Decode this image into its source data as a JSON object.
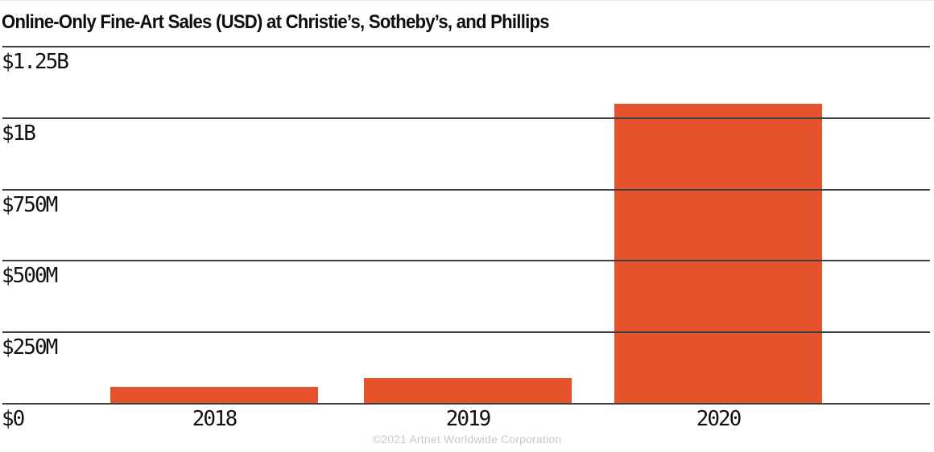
{
  "page": {
    "footer_note": "©2021 Artnet Worldwide Corporation"
  },
  "colors": {
    "background": "#FFFFFF",
    "bar": "#E6522B",
    "gridline": "#3F3F3F",
    "title_text": "#0D0D0D",
    "tick_text": "#111111",
    "footer_text": "#C9C9C9"
  },
  "chart_data": {
    "type": "bar",
    "title": "Online-Only Fine-Art Sales (USD) at Christie’s, Sotheby’s, and Phillips",
    "categories": [
      "2018",
      "2019",
      "2020"
    ],
    "values": [
      60,
      90,
      1050
    ],
    "unit": "USD millions",
    "xlabel": "",
    "ylabel": "",
    "ylim": [
      0,
      1250
    ],
    "yticks": [
      {
        "value": 1250,
        "label": "$1.25B"
      },
      {
        "value": 1000,
        "label": "$1B"
      },
      {
        "value": 750,
        "label": "$750M"
      },
      {
        "value": 500,
        "label": "$500M"
      },
      {
        "value": 250,
        "label": "$250M"
      },
      {
        "value": 0,
        "label": "$0"
      }
    ],
    "grid": "horizontal-lines-over-bars",
    "legend": false,
    "source_note": "©2021 Artnet Worldwide Corporation"
  }
}
